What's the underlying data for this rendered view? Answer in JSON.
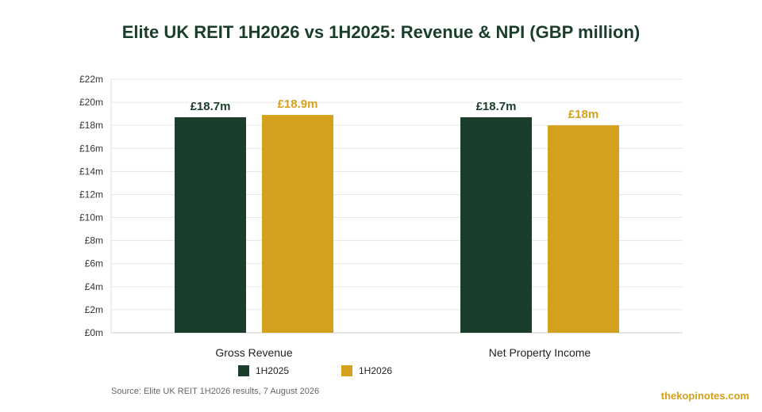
{
  "colors": {
    "series_1h2025": "#1b3d2b",
    "series_1h2026": "#d4a11c",
    "grid": "#e6e6e6",
    "title": "#1b3d2b"
  },
  "source": "Source: Elite UK REIT 1H2026 results, 7 August 2026",
  "watermark": "thekopinotes.com",
  "chart_data": {
    "type": "bar",
    "title": "Elite UK REIT 1H2026 vs 1H2025: Revenue & NPI (GBP million)",
    "categories": [
      "Gross Revenue",
      "Net Property Income"
    ],
    "series": [
      {
        "name": "1H2025",
        "values": [
          18.7,
          18.7
        ],
        "labels": [
          "£18.7m",
          "£18.7m"
        ]
      },
      {
        "name": "1H2026",
        "values": [
          18.9,
          18.0
        ],
        "labels": [
          "£18.9m",
          "£18m"
        ]
      }
    ],
    "ylim": [
      0,
      22
    ],
    "yticks": [
      0,
      2,
      4,
      6,
      8,
      10,
      12,
      14,
      16,
      18,
      20,
      22
    ],
    "ytick_labels": [
      "£0m",
      "£2m",
      "£4m",
      "£6m",
      "£8m",
      "£10m",
      "£12m",
      "£14m",
      "£16m",
      "£18m",
      "£20m",
      "£22m"
    ],
    "grid": true,
    "legend_position": "bottom"
  }
}
